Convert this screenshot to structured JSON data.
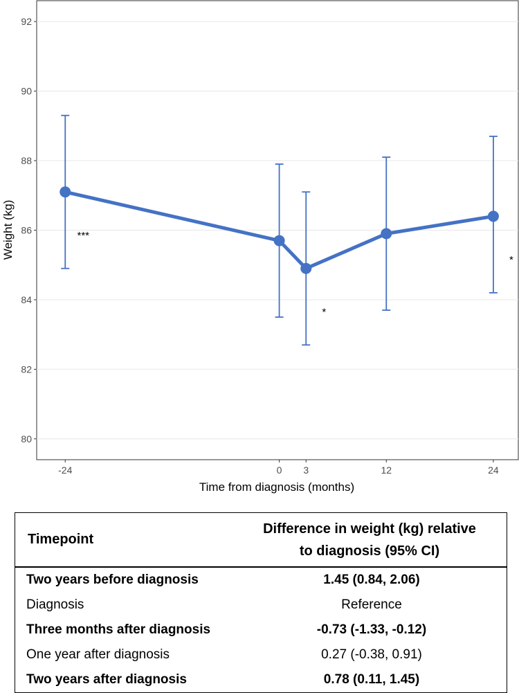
{
  "chart_data": {
    "type": "line",
    "title": "",
    "xlabel": "Time from diagnosis (months)",
    "ylabel": "Weight (kg)",
    "xlim": [
      -27.2,
      26.8
    ],
    "ylim": [
      79.4,
      92.6
    ],
    "x_ticks": [
      -24,
      0,
      3,
      12,
      24
    ],
    "y_ticks": [
      80,
      82,
      84,
      86,
      88,
      90,
      92
    ],
    "color": "#4472C4",
    "grid": true,
    "series": [
      {
        "name": "Weight",
        "points": [
          {
            "x": -24,
            "y": 87.1,
            "lower": 84.9,
            "upper": 89.3,
            "sig": "***"
          },
          {
            "x": 0,
            "y": 85.7,
            "lower": 83.5,
            "upper": 87.9,
            "sig": ""
          },
          {
            "x": 3,
            "y": 84.9,
            "lower": 82.7,
            "upper": 87.1,
            "sig": "*"
          },
          {
            "x": 12,
            "y": 85.9,
            "lower": 83.7,
            "upper": 88.1,
            "sig": ""
          },
          {
            "x": 24,
            "y": 86.4,
            "lower": 84.2,
            "upper": 88.7,
            "sig": "*"
          }
        ]
      }
    ]
  },
  "table": {
    "header_timepoint": "Timepoint",
    "header_difference_line1": "Difference in weight (kg) relative",
    "header_difference_line2": "to diagnosis (95% CI)",
    "rows": [
      {
        "timepoint": "Two years before diagnosis",
        "difference": "1.45 (0.84, 2.06)",
        "bold": true
      },
      {
        "timepoint": "Diagnosis",
        "difference": "Reference",
        "bold": false
      },
      {
        "timepoint": "Three months after diagnosis",
        "difference": "-0.73 (-1.33, -0.12)",
        "bold": true
      },
      {
        "timepoint": "One year after diagnosis",
        "difference": "0.27 (-0.38, 0.91)",
        "bold": false
      },
      {
        "timepoint": "Two years after diagnosis",
        "difference": "0.78 (0.11, 1.45)",
        "bold": true
      }
    ]
  }
}
